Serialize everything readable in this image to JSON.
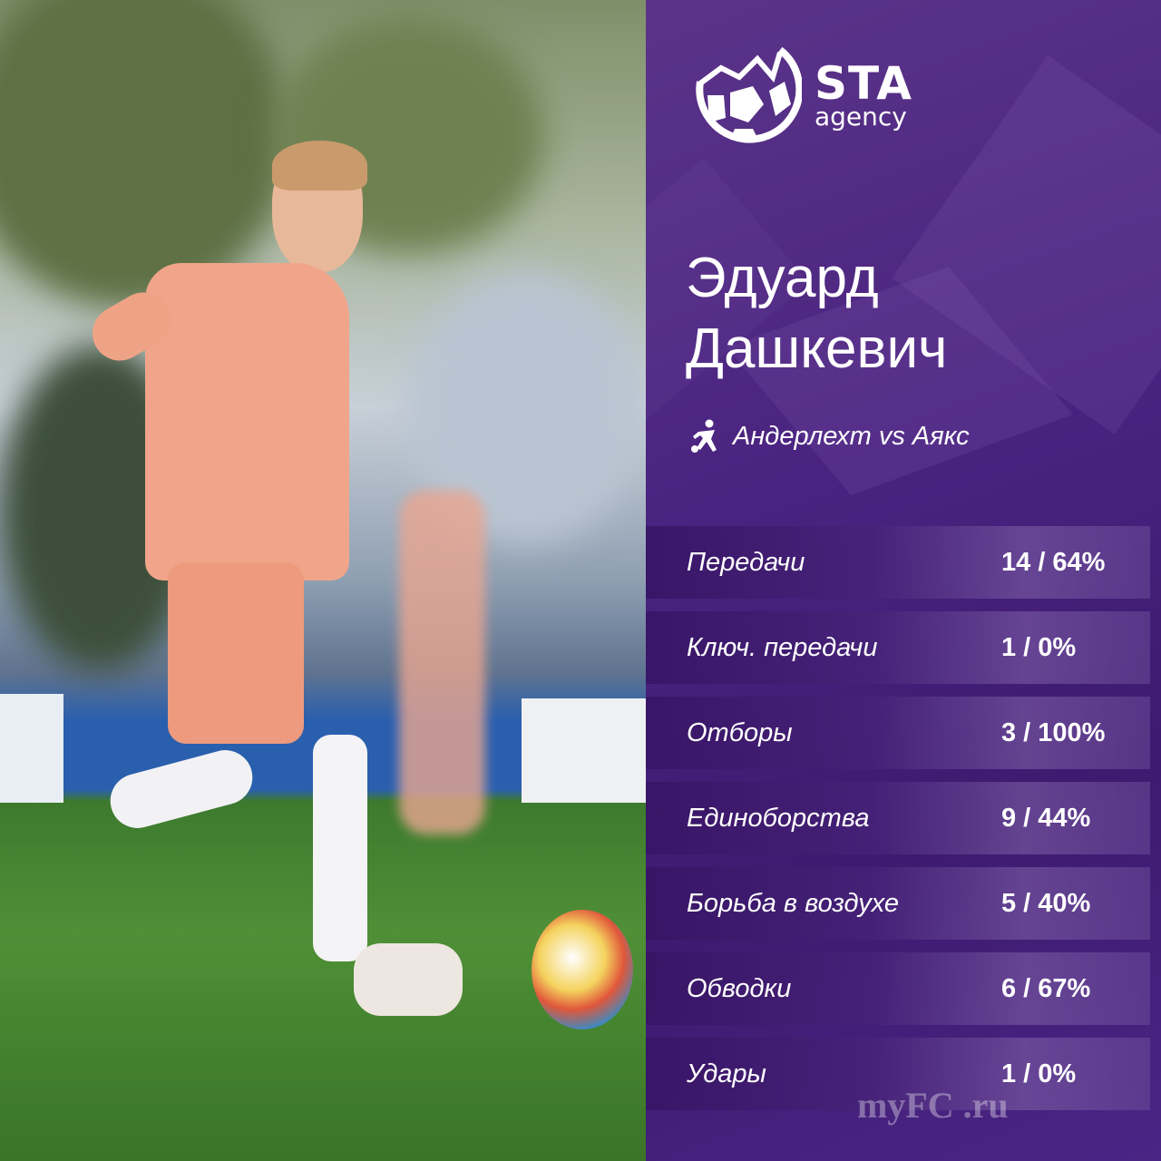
{
  "logo": {
    "brand": "STA",
    "sub": "agency"
  },
  "player": {
    "first_name": "Эдуард",
    "last_name": "Дашкевич"
  },
  "match": {
    "icon": "football-player-icon",
    "title": "Андерлехт vs Аякс"
  },
  "stats": [
    {
      "label": "Передачи",
      "value": "14 / 64%"
    },
    {
      "label": "Ключ. передачи",
      "value": "1 / 0%"
    },
    {
      "label": "Отборы",
      "value": "3 / 100%"
    },
    {
      "label": "Единоборства",
      "value": "9 / 44%"
    },
    {
      "label": "Борьба в воздухе",
      "value": "5 / 40%"
    },
    {
      "label": "Обводки",
      "value": "6 / 67%"
    },
    {
      "label": "Удары",
      "value": "1 / 0%"
    }
  ],
  "watermark": "myFC .ru",
  "colors": {
    "panel": "#4a2380",
    "text": "#ffffff"
  }
}
